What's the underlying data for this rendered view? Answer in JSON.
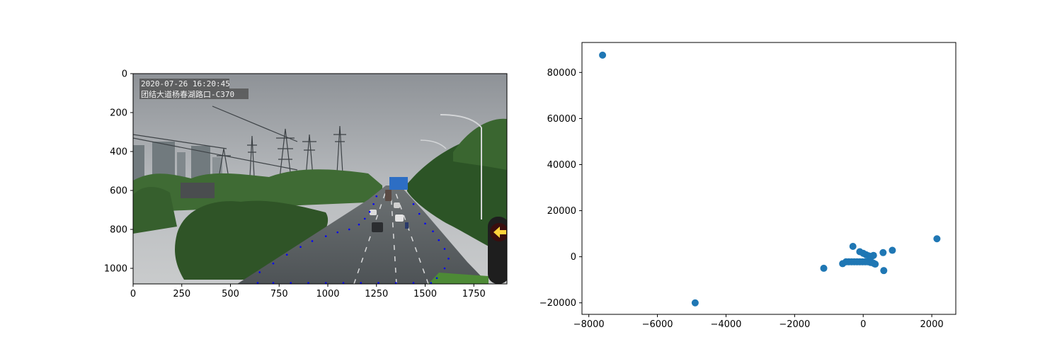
{
  "chart_data": [
    {
      "type": "image",
      "image": {
        "content": "traffic camera photograph: multi-lane road through green trees, power transmission towers, high-rise buildings on the left, overcast sky, a red left-arrow traffic signal at the right edge",
        "caption_lines": [
          "2020-07-26 16:20:45",
          "团结大道杨春湖路口-C370"
        ]
      },
      "xlim": [
        0,
        1920
      ],
      "ylim": [
        1080,
        0
      ],
      "xticks": [
        0,
        250,
        500,
        750,
        1000,
        1250,
        1500,
        1750
      ],
      "yticks": [
        0,
        200,
        400,
        600,
        800,
        1000
      ],
      "overlay_points_color": "#0000ff",
      "overlay_points": [
        [
          650,
          1020
        ],
        [
          720,
          975
        ],
        [
          790,
          930
        ],
        [
          860,
          890
        ],
        [
          920,
          860
        ],
        [
          990,
          835
        ],
        [
          1050,
          815
        ],
        [
          1110,
          800
        ],
        [
          1160,
          775
        ],
        [
          1190,
          745
        ],
        [
          1215,
          710
        ],
        [
          1235,
          670
        ],
        [
          1250,
          630
        ],
        [
          1440,
          670
        ],
        [
          1470,
          720
        ],
        [
          1500,
          770
        ],
        [
          1540,
          810
        ],
        [
          1570,
          855
        ],
        [
          1600,
          900
        ],
        [
          1620,
          950
        ],
        [
          1600,
          1000
        ],
        [
          1560,
          1050
        ],
        [
          640,
          1075
        ],
        [
          720,
          1075
        ],
        [
          810,
          1075
        ],
        [
          900,
          1075
        ],
        [
          990,
          1075
        ],
        [
          1080,
          1075
        ],
        [
          1170,
          1075
        ],
        [
          1260,
          1075
        ],
        [
          1350,
          1075
        ],
        [
          1440,
          1075
        ],
        [
          1530,
          1075
        ]
      ]
    },
    {
      "type": "scatter",
      "color": "#1f77b4",
      "xlim": [
        -8200,
        2700
      ],
      "ylim": [
        -25000,
        93000
      ],
      "xticks": [
        -8000,
        -6000,
        -4000,
        -2000,
        0,
        2000
      ],
      "yticks": [
        -20000,
        0,
        20000,
        40000,
        60000,
        80000
      ],
      "points": [
        {
          "x": -7600,
          "y": 87500
        },
        {
          "x": -4900,
          "y": -20000
        },
        {
          "x": -1150,
          "y": -5000
        },
        {
          "x": -600,
          "y": -3000
        },
        {
          "x": -500,
          "y": -2200
        },
        {
          "x": -420,
          "y": -2200
        },
        {
          "x": -340,
          "y": -2200
        },
        {
          "x": -260,
          "y": -2200
        },
        {
          "x": -180,
          "y": -2200
        },
        {
          "x": -100,
          "y": -2200
        },
        {
          "x": -20,
          "y": -2200
        },
        {
          "x": 60,
          "y": -2200
        },
        {
          "x": 140,
          "y": -2200
        },
        {
          "x": 220,
          "y": -2500
        },
        {
          "x": 300,
          "y": -2800
        },
        {
          "x": 350,
          "y": -3200
        },
        {
          "x": -300,
          "y": 4500
        },
        {
          "x": -100,
          "y": 2200
        },
        {
          "x": 0,
          "y": 1500
        },
        {
          "x": 80,
          "y": 900
        },
        {
          "x": 160,
          "y": 400
        },
        {
          "x": 240,
          "y": 0
        },
        {
          "x": 300,
          "y": 600
        },
        {
          "x": 580,
          "y": 1800
        },
        {
          "x": 600,
          "y": -6000
        },
        {
          "x": 850,
          "y": 2800
        },
        {
          "x": 2150,
          "y": 7800
        }
      ]
    }
  ]
}
